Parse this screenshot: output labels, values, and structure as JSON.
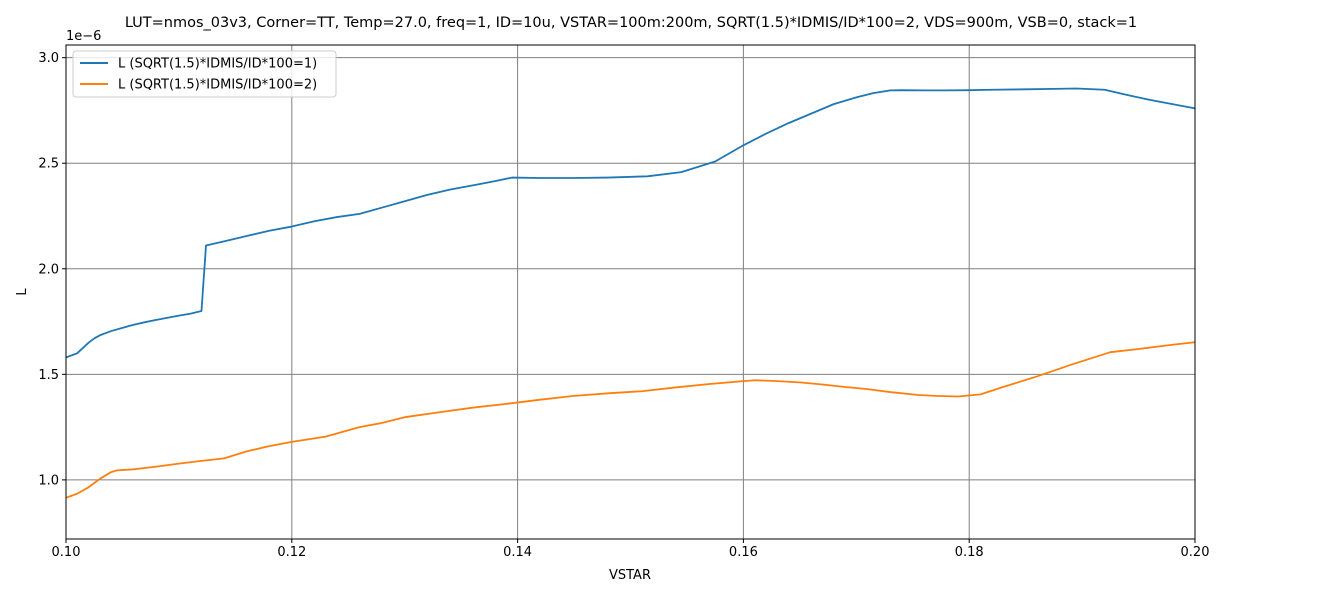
{
  "chart_data": {
    "type": "line",
    "title": "LUT=nmos_03v3, Corner=TT, Temp=27.0, freq=1, ID=10u, VSTAR=100m:200m, SQRT(1.5)*IDMIS/ID*100=2, VDS=900m, VSB=0, stack=1",
    "xlabel": "VSTAR",
    "ylabel": "L",
    "y_offset_text": "1e−6",
    "xlim": [
      0.1,
      0.2
    ],
    "ylim": [
      0.72,
      3.06
    ],
    "x_ticks": [
      0.1,
      0.12,
      0.14,
      0.16,
      0.18,
      0.2
    ],
    "x_tick_labels": [
      "0.10",
      "0.12",
      "0.14",
      "0.16",
      "0.18",
      "0.20"
    ],
    "y_ticks": [
      1.0,
      1.5,
      2.0,
      2.5,
      3.0
    ],
    "y_tick_labels": [
      "1.0",
      "1.5",
      "2.0",
      "2.5",
      "3.0"
    ],
    "grid": true,
    "legend_position": "top-left",
    "series": [
      {
        "name": "L (SQRT(1.5)*IDMIS/ID*100=1)",
        "color": "#1f77b4",
        "x": [
          0.1,
          0.101,
          0.102,
          0.1025,
          0.103,
          0.104,
          0.105,
          0.106,
          0.107,
          0.108,
          0.109,
          0.11,
          0.111,
          0.112,
          0.1124,
          0.114,
          0.116,
          0.118,
          0.12,
          0.122,
          0.124,
          0.126,
          0.128,
          0.13,
          0.132,
          0.134,
          0.1365,
          0.138,
          0.1395,
          0.142,
          0.145,
          0.148,
          0.1515,
          0.1545,
          0.1575,
          0.16,
          0.162,
          0.164,
          0.166,
          0.168,
          0.17,
          0.1715,
          0.173,
          0.174,
          0.176,
          0.178,
          0.18,
          0.182,
          0.185,
          0.1875,
          0.1895,
          0.192,
          0.194,
          0.196,
          0.198,
          0.2
        ],
        "values": [
          1.58,
          1.6,
          1.65,
          1.67,
          1.685,
          1.705,
          1.72,
          1.735,
          1.747,
          1.758,
          1.768,
          1.778,
          1.787,
          1.8,
          2.11,
          2.13,
          2.155,
          2.18,
          2.2,
          2.225,
          2.245,
          2.26,
          2.29,
          2.32,
          2.35,
          2.375,
          2.4,
          2.415,
          2.432,
          2.43,
          2.43,
          2.432,
          2.438,
          2.458,
          2.508,
          2.585,
          2.64,
          2.69,
          2.735,
          2.78,
          2.812,
          2.832,
          2.845,
          2.846,
          2.845,
          2.845,
          2.846,
          2.848,
          2.85,
          2.852,
          2.854,
          2.848,
          2.823,
          2.8,
          2.78,
          2.76
        ]
      },
      {
        "name": "L (SQRT(1.5)*IDMIS/ID*100=2)",
        "color": "#ff7f0e",
        "x": [
          0.1,
          0.101,
          0.102,
          0.103,
          0.104,
          0.1045,
          0.106,
          0.108,
          0.11,
          0.112,
          0.114,
          0.116,
          0.118,
          0.12,
          0.123,
          0.126,
          0.128,
          0.13,
          0.133,
          0.136,
          0.139,
          0.142,
          0.145,
          0.148,
          0.151,
          0.154,
          0.157,
          0.16,
          0.161,
          0.163,
          0.165,
          0.167,
          0.169,
          0.171,
          0.173,
          0.1755,
          0.177,
          0.179,
          0.181,
          0.183,
          0.186,
          0.189,
          0.1925,
          0.195,
          0.198,
          0.2
        ],
        "values": [
          0.915,
          0.935,
          0.965,
          1.005,
          1.037,
          1.045,
          1.05,
          1.063,
          1.077,
          1.09,
          1.102,
          1.135,
          1.16,
          1.18,
          1.205,
          1.25,
          1.27,
          1.297,
          1.32,
          1.342,
          1.36,
          1.38,
          1.398,
          1.41,
          1.42,
          1.438,
          1.454,
          1.468,
          1.472,
          1.468,
          1.462,
          1.452,
          1.44,
          1.43,
          1.416,
          1.402,
          1.398,
          1.395,
          1.405,
          1.44,
          1.49,
          1.545,
          1.605,
          1.62,
          1.64,
          1.652
        ]
      }
    ]
  }
}
